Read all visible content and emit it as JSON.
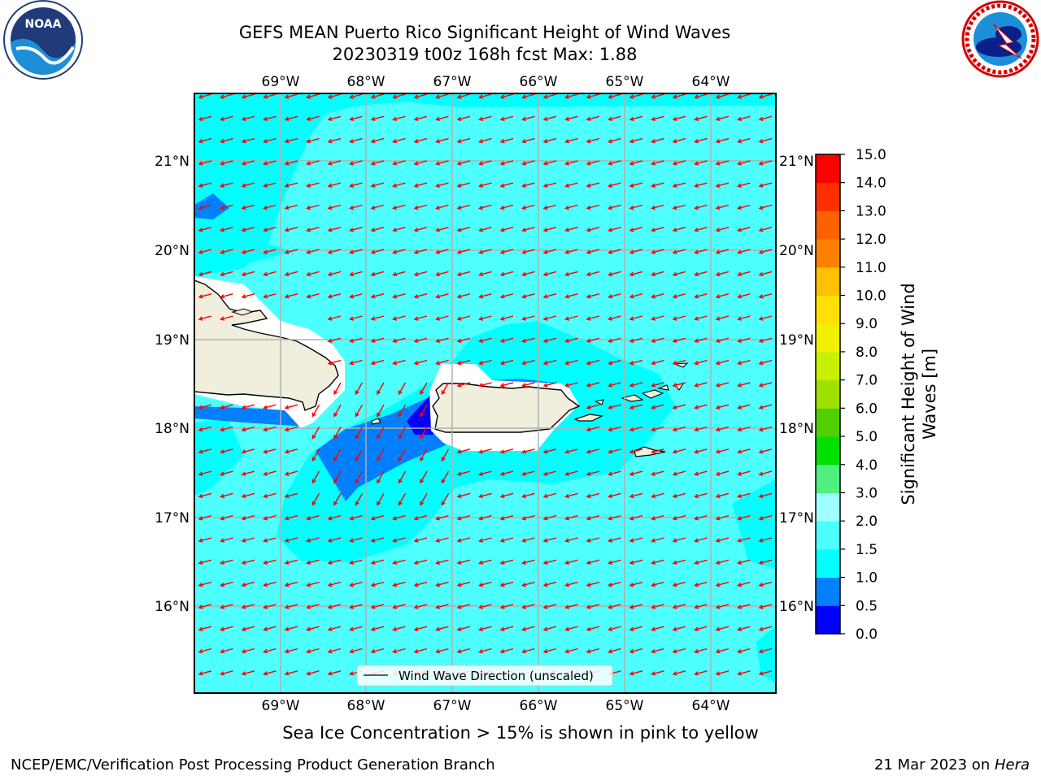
{
  "title_line1": "GEFS MEAN Puerto Rico Significant Height of Wind Waves",
  "title_line2": "20230319 t00z 168h fcst   Max: 1.88",
  "note": "Sea Ice Concentration > 15% is shown in pink to yellow",
  "footer_left": "NCEP/EMC/Verification Post Processing Product Generation Branch",
  "footer_right_prefix": "21 Mar 2023 on ",
  "footer_right_host": "Hera",
  "legend_label": "Wind Wave Direction (unscaled)",
  "lon_labels": [
    "69°W",
    "68°W",
    "67°W",
    "66°W",
    "65°W",
    "64°W"
  ],
  "lat_labels": [
    "21°N",
    "20°N",
    "19°N",
    "18°N",
    "17°N",
    "16°N"
  ],
  "colorbar": {
    "title_line1": "Significant Height of Wind",
    "title_line2": "Waves [m]",
    "tick_labels": [
      "0.0",
      "0.5",
      "1.0",
      "1.5",
      "2.0",
      "3.0",
      "4.0",
      "5.0",
      "6.0",
      "7.0",
      "8.0",
      "9.0",
      "10.0",
      "11.0",
      "12.0",
      "13.0",
      "14.0",
      "15.0"
    ],
    "colors": [
      "#0000ff",
      "#0080ff",
      "#00ffff",
      "#4dffff",
      "#a0ffff",
      "#50f080",
      "#00e000",
      "#50d000",
      "#a0e000",
      "#c8f000",
      "#f0f000",
      "#ffe000",
      "#ffc000",
      "#ff8000",
      "#ff6000",
      "#ff3000",
      "#ff0000"
    ]
  },
  "map_colors": {
    "ocean_base": "#4dffff",
    "ocean_light": "#00ffff",
    "ocean_mid": "#0080ff",
    "ocean_deep": "#0000ff",
    "land": "#f0eedc",
    "arrow": "#ff0000",
    "grid": "#b0b0b0"
  },
  "chart_data": {
    "type": "map",
    "title": "GEFS MEAN Puerto Rico Significant Height of Wind Waves",
    "subtitle": "20230319 t00z 168h fcst   Max: 1.88",
    "max_value": 1.88,
    "units": "m",
    "lon_range": [
      -70.0,
      -63.25
    ],
    "lat_range": [
      15.0,
      21.75
    ],
    "gridlines": true,
    "legend_placement": "bottom-center",
    "colorbar_levels": [
      0.0,
      0.5,
      1.0,
      1.5,
      2.0,
      3.0,
      4.0,
      5.0,
      6.0,
      7.0,
      8.0,
      9.0,
      10.0,
      11.0,
      12.0,
      13.0,
      14.0,
      15.0
    ],
    "wind_wave_direction": "toward southwest"
  }
}
